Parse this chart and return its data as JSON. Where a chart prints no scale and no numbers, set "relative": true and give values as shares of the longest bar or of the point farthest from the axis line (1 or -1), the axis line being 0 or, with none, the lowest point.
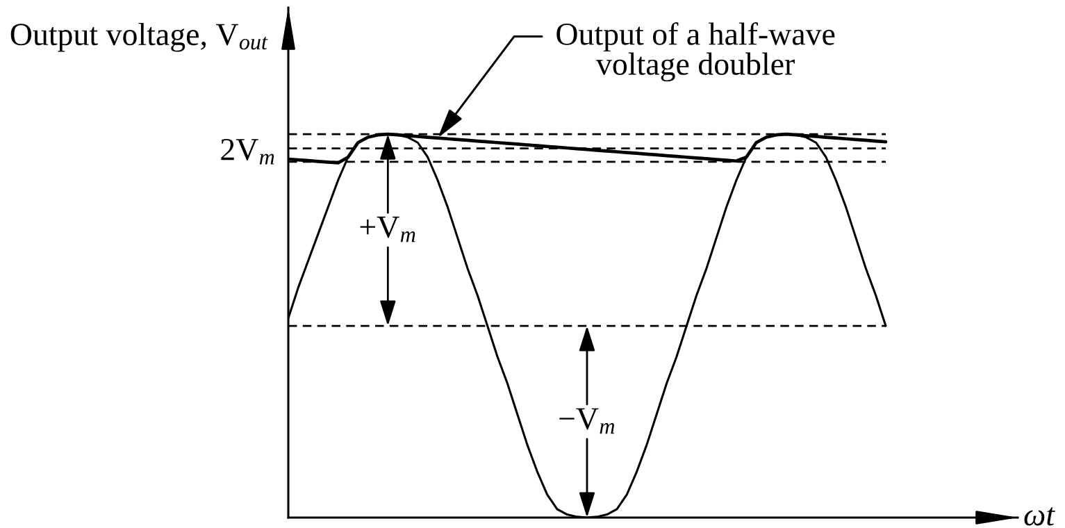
{
  "chart_data": {
    "type": "line",
    "relative": true,
    "ylabel": "Output voltage, V$_{out}$",
    "xlabel": "ωt",
    "categories": [
      null,
      null,
      null,
      null,
      null,
      null,
      null,
      null,
      null,
      null,
      null,
      null,
      null,
      null,
      null,
      null,
      null,
      null,
      null,
      null,
      null,
      null,
      null,
      null,
      null,
      null,
      null,
      null,
      null,
      null,
      null,
      null,
      null,
      null,
      null,
      null,
      null,
      null,
      null,
      null,
      null,
      null,
      null,
      null,
      null,
      null,
      null,
      null,
      null,
      null,
      null,
      null,
      null,
      null,
      null,
      null,
      null,
      null,
      null,
      null,
      null
    ],
    "series": [
      {
        "color": "#000000",
        "values": [
          0.52,
          0.6,
          0.67,
          0.74,
          0.81,
          0.88,
          0.94,
          0.978,
          0.992,
          0.998,
          1.0,
          0.998,
          0.992,
          0.978,
          0.94,
          0.88,
          0.81,
          0.73,
          0.65,
          0.58,
          0.5,
          0.42,
          0.35,
          0.27,
          0.19,
          0.12,
          0.06,
          0.022,
          0.008,
          0.002,
          0.0,
          0.002,
          0.008,
          0.022,
          0.06,
          0.12,
          0.19,
          0.27,
          0.35,
          0.42,
          0.5,
          0.58,
          0.65,
          0.73,
          0.81,
          0.88,
          0.94,
          0.978,
          0.992,
          0.998,
          1.0,
          0.998,
          0.992,
          0.978,
          0.94,
          0.88,
          0.81,
          0.73,
          0.65,
          0.58,
          0.5
        ]
      },
      {
        "name": "Output of a half-wave\nvoltage doubler",
        "color": "#000000",
        "values": [
          0.935,
          0.933,
          0.931,
          0.929,
          0.927,
          0.925,
          0.94,
          0.978,
          0.992,
          0.998,
          1.0,
          0.998,
          0.996,
          0.994,
          0.992,
          0.99,
          0.988,
          0.986,
          0.984,
          0.982,
          0.98,
          0.978,
          0.976,
          0.974,
          0.972,
          0.97,
          0.968,
          0.966,
          0.964,
          0.962,
          0.96,
          0.958,
          0.956,
          0.954,
          0.952,
          0.95,
          0.948,
          0.946,
          0.944,
          0.942,
          0.94,
          0.938,
          0.936,
          0.934,
          0.932,
          0.93,
          0.94,
          0.978,
          0.992,
          0.998,
          1.0,
          0.998,
          0.996,
          0.994,
          0.992,
          0.99,
          0.988,
          0.986,
          0.984,
          0.982,
          0.98
        ]
      }
    ],
    "ref_lines": [
      {
        "axis": "y",
        "value": 0.5,
        "color": "#000000",
        "line_style": "dashed"
      },
      {
        "axis": "y",
        "value": 1.0,
        "label": "2V$_{m}$",
        "color": "#000000",
        "line_style": "dashed"
      },
      {
        "axis": "y",
        "value": 0.963,
        "color": "#000000",
        "line_style": "dashed"
      },
      {
        "axis": "y",
        "value": 0.928,
        "color": "#000000",
        "line_style": "dashed"
      }
    ],
    "annotations": [
      "+V$_{m}$",
      "−V$_{m}$"
    ]
  }
}
